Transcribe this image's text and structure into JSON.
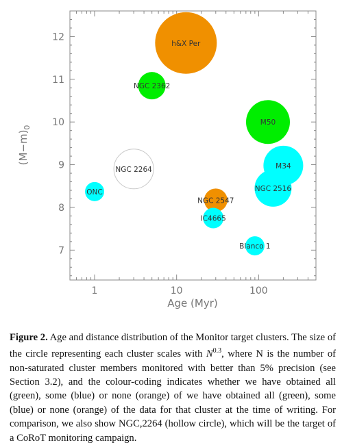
{
  "chart_data": {
    "type": "scatter",
    "x_scale": "log",
    "xlim": [
      0.5,
      500
    ],
    "ylim": [
      6.3,
      12.6
    ],
    "xlabel": "Age (Myr)",
    "ylabel": "(M−m)",
    "ylabel_sub": "0",
    "x_ticks": [
      {
        "value": 1,
        "label": "1"
      },
      {
        "value": 10,
        "label": "10"
      },
      {
        "value": 100,
        "label": "100"
      }
    ],
    "y_ticks": [
      {
        "value": 7,
        "label": "7"
      },
      {
        "value": 8,
        "label": "8"
      },
      {
        "value": 9,
        "label": "9"
      },
      {
        "value": 10,
        "label": "10"
      },
      {
        "value": 11,
        "label": "11"
      },
      {
        "value": 12,
        "label": "12"
      }
    ],
    "grid": false,
    "colors": {
      "green": "#00ee00",
      "cyan": "#00ffff",
      "orange": "#f09000",
      "hollow": "#c8c8c8"
    },
    "points": [
      {
        "label": "h&X Per",
        "age": 13,
        "dm": 11.85,
        "r": 45,
        "status": "orange"
      },
      {
        "label": "NGC 2362",
        "age": 5,
        "dm": 10.85,
        "r": 20,
        "status": "green"
      },
      {
        "label": "M50",
        "age": 130,
        "dm": 10.0,
        "r": 32,
        "status": "green"
      },
      {
        "label": "NGC 2264",
        "age": 3,
        "dm": 8.9,
        "r": 29,
        "status": "hollow"
      },
      {
        "label": "M34",
        "age": 200,
        "dm": 8.98,
        "r": 29,
        "status": "cyan"
      },
      {
        "label": "NGC 2516",
        "age": 150,
        "dm": 8.45,
        "r": 27,
        "status": "cyan"
      },
      {
        "label": "ONC",
        "age": 1,
        "dm": 8.37,
        "r": 14,
        "status": "cyan"
      },
      {
        "label": "NGC 2547",
        "age": 30,
        "dm": 8.17,
        "r": 17,
        "status": "orange"
      },
      {
        "label": "IC4665",
        "age": 28,
        "dm": 7.75,
        "r": 15,
        "status": "cyan"
      },
      {
        "label": "Blanco 1",
        "age": 90,
        "dm": 7.1,
        "r": 14,
        "status": "cyan"
      }
    ]
  },
  "caption": {
    "label": "Figure 2.",
    "text": " Age and distance distribution of the Monitor target clusters. The size of the circle representing each cluster scales with N^0.3, where N is the number of non-saturated cluster members monitored with better than 5% precision (see Section 3.2), and the colour-coding indicates whether we have obtained all (green), some (blue) or none (orange) of we have obtained all (green), some (blue) or none (orange) of the data for that cluster at the time of writing. For comparison, we also show NGC,2264 (hollow circle), which will be the target of a CoRoT monitoring campaign."
  }
}
